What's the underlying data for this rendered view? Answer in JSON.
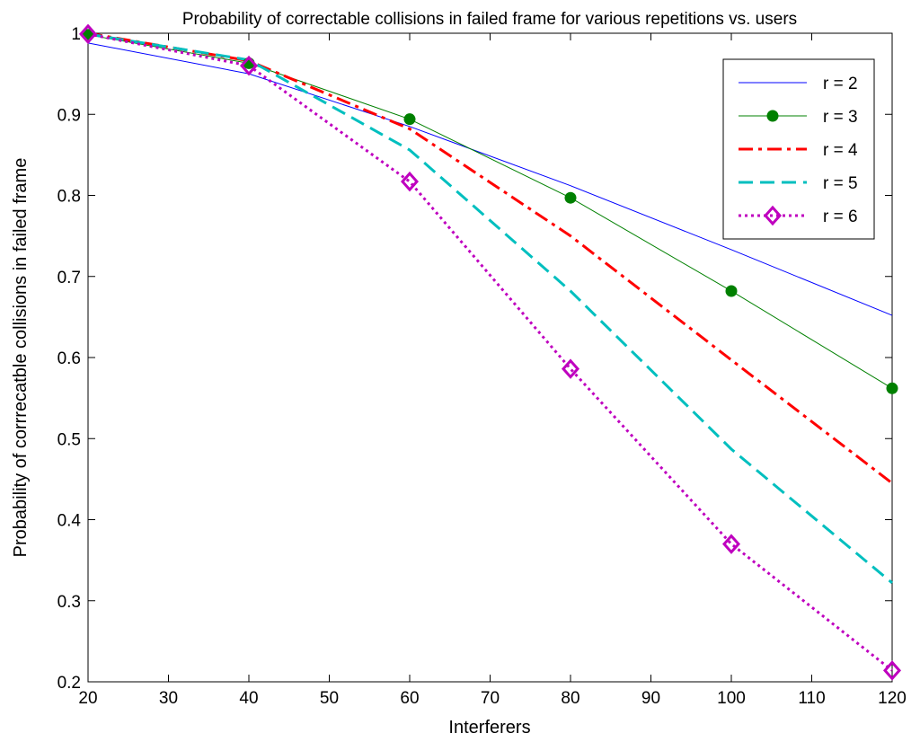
{
  "chart_data": {
    "type": "line",
    "title": "Probability of correctable collisions in failed frame for various repetitions vs. users",
    "xlabel": "Interferers",
    "ylabel": "Probability of corrrecatble collisions in failed frame",
    "xlim": [
      20,
      120
    ],
    "ylim": [
      0.2,
      1.0
    ],
    "xticks": [
      "20",
      "30",
      "40",
      "50",
      "60",
      "70",
      "80",
      "90",
      "100",
      "110",
      "120"
    ],
    "yticks": [
      "0.2",
      "0.3",
      "0.4",
      "0.5",
      "0.6",
      "0.7",
      "0.8",
      "0.9",
      "1"
    ],
    "grid": false,
    "legend_position": "top-right",
    "x": [
      20,
      40,
      60,
      80,
      100,
      120
    ],
    "series": [
      {
        "name": "r = 2",
        "values": [
          0.988,
          0.95,
          0.885,
          0.812,
          0.733,
          0.652
        ],
        "color": "#0000ff",
        "style": "solid",
        "marker": "none"
      },
      {
        "name": "r = 3",
        "values": [
          0.998,
          0.963,
          0.894,
          0.797,
          0.682,
          0.562
        ],
        "color": "#008000",
        "style": "solid",
        "marker": "circle"
      },
      {
        "name": "r = 4",
        "values": [
          1.0,
          0.966,
          0.882,
          0.75,
          0.597,
          0.445
        ],
        "color": "#ff0000",
        "style": "dashdot",
        "marker": "none"
      },
      {
        "name": "r = 5",
        "values": [
          0.999,
          0.967,
          0.856,
          0.682,
          0.487,
          0.322
        ],
        "color": "#00bfbf",
        "style": "dashed",
        "marker": "none"
      },
      {
        "name": "r = 6",
        "values": [
          0.999,
          0.96,
          0.817,
          0.586,
          0.37,
          0.214
        ],
        "color": "#bf00bf",
        "style": "dotted",
        "marker": "diamond"
      }
    ]
  }
}
